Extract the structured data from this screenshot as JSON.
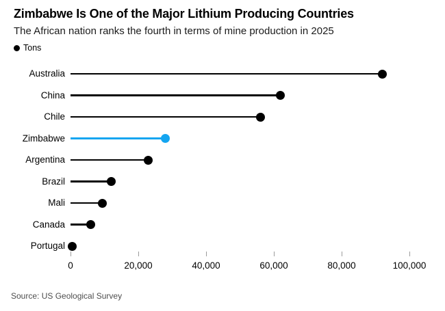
{
  "header": {
    "title": "Zimbabwe Is One of the Major Lithium Producing Countries",
    "subtitle": "The African nation ranks the fourth in terms of mine production in 2025"
  },
  "legend": {
    "label": "Tons"
  },
  "chart_data": {
    "type": "lollipop",
    "title": "Zimbabwe Is One of the Major Lithium Producing Countries",
    "subtitle": "The African nation ranks the fourth in terms of mine production in 2025",
    "unit": "Tons",
    "categories": [
      "Australia",
      "China",
      "Chile",
      "Zimbabwe",
      "Argentina",
      "Brazil",
      "Mali",
      "Canada",
      "Portugal"
    ],
    "values": [
      92000,
      62000,
      56000,
      28000,
      23000,
      12000,
      9300,
      6000,
      500
    ],
    "highlight_category": "Zimbabwe",
    "xlim": [
      0,
      100000
    ],
    "x_ticks": [
      0,
      20000,
      40000,
      60000,
      80000,
      100000
    ],
    "x_tick_labels": [
      "0",
      "20,000",
      "40,000",
      "60,000",
      "80,000",
      "100,000"
    ],
    "grid": false,
    "legend_position": "top-left",
    "colors": {
      "default": "#000000",
      "highlight": "#14a5f0"
    }
  },
  "source": "Source: US Geological Survey"
}
